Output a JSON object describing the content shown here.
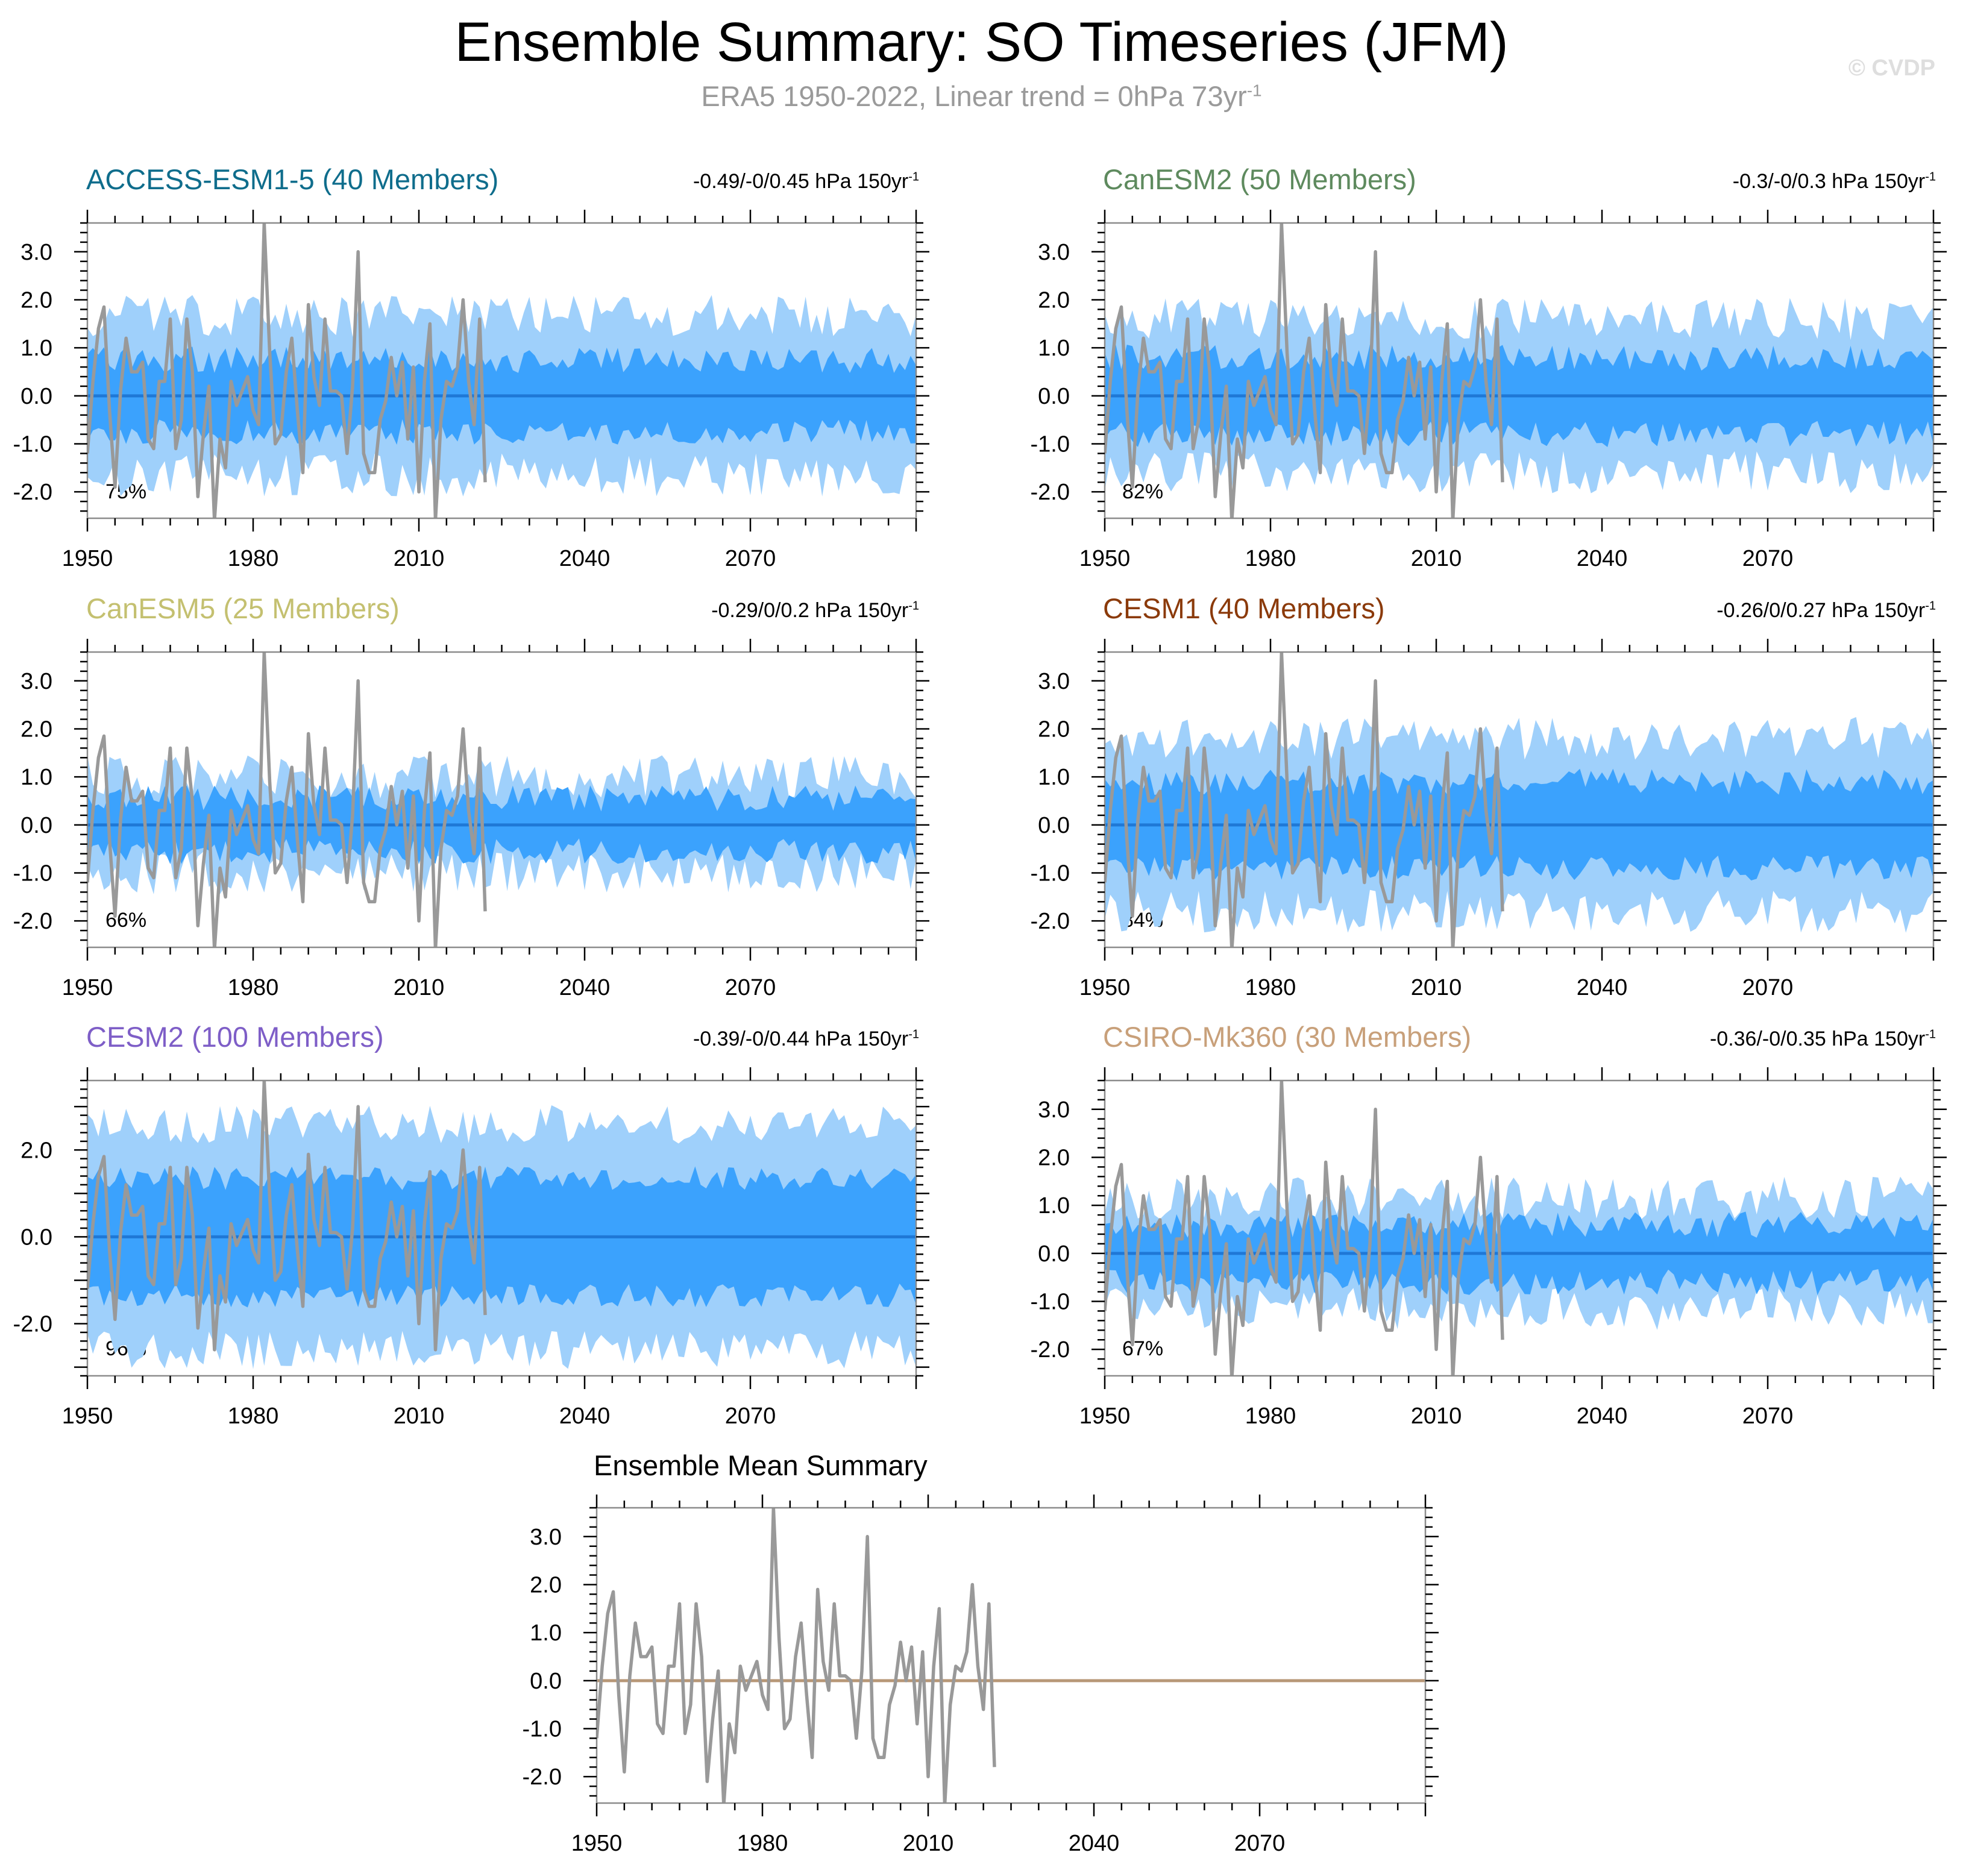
{
  "figure": {
    "title": "Ensemble Summary: SO Timeseries (JFM)",
    "subtitle_main": "ERA5 1950-2022, Linear trend = 0hPa 73yr",
    "subtitle_sup": "-1",
    "watermark": "© CVDP",
    "colors": {
      "band_outer": "#9fd0fb",
      "band_inner": "#3ba2fd",
      "ens_mean_line": "#1f78d6",
      "obs_line": "#999999",
      "summary_mean_line": "#b79777"
    }
  },
  "chart_data": [
    {
      "type": "area",
      "title": "ACCESS-ESM1-5 (40 Members)",
      "title_color": "#0f6d8c",
      "range_text": "-0.49/-0/0.45 hPa 150yr",
      "range_sup": "-1",
      "percent_label": "75%",
      "outer_halfwidth": 1.65,
      "inner_halfwidth": 0.75,
      "x_ticks": [
        "1950",
        "1980",
        "2010",
        "2040",
        "2070"
      ],
      "y_ticks": [
        "3.0",
        "2.0",
        "1.0",
        "0.0",
        "-1.0",
        "-2.0"
      ],
      "xlim": [
        1950,
        2100
      ],
      "ylim": [
        -2.55,
        3.6
      ],
      "xlabel": "",
      "ylabel": ""
    },
    {
      "type": "area",
      "title": "CanESM2 (50 Members)",
      "title_color": "#5e8a5e",
      "range_text": "-0.3/-0/0.3 hPa 150yr",
      "range_sup": "-1",
      "percent_label": "82%",
      "outer_halfwidth": 1.6,
      "inner_halfwidth": 0.8,
      "x_ticks": [
        "1950",
        "1980",
        "2010",
        "2040",
        "2070"
      ],
      "y_ticks": [
        "3.0",
        "2.0",
        "1.0",
        "0.0",
        "-1.0",
        "-2.0"
      ],
      "xlim": [
        1950,
        2100
      ],
      "ylim": [
        -2.55,
        3.6
      ],
      "xlabel": "",
      "ylabel": ""
    },
    {
      "type": "area",
      "title": "CanESM5 (25 Members)",
      "title_color": "#c4c070",
      "range_text": "-0.29/0/0.2 hPa 150yr",
      "range_sup": "-1",
      "percent_label": "66%",
      "outer_halfwidth": 1.0,
      "inner_halfwidth": 0.55,
      "x_ticks": [
        "1950",
        "1980",
        "2010",
        "2040",
        "2070"
      ],
      "y_ticks": [
        "3.0",
        "2.0",
        "1.0",
        "0.0",
        "-1.0",
        "-2.0"
      ],
      "xlim": [
        1950,
        2100
      ],
      "ylim": [
        -2.55,
        3.6
      ],
      "xlabel": "",
      "ylabel": ""
    },
    {
      "type": "area",
      "title": "CESM1 (40 Members)",
      "title_color": "#8b3a0a",
      "range_text": "-0.26/0/0.27 hPa 150yr",
      "range_sup": "-1",
      "percent_label": "84%",
      "outer_halfwidth": 1.8,
      "inner_halfwidth": 0.9,
      "x_ticks": [
        "1950",
        "1980",
        "2010",
        "2040",
        "2070"
      ],
      "y_ticks": [
        "3.0",
        "2.0",
        "1.0",
        "0.0",
        "-1.0",
        "-2.0"
      ],
      "xlim": [
        1950,
        2100
      ],
      "ylim": [
        -2.55,
        3.6
      ],
      "xlabel": "",
      "ylabel": ""
    },
    {
      "type": "area",
      "title": "CESM2 (100 Members)",
      "title_color": "#7e5ec7",
      "range_text": "-0.39/-0/0.44 hPa 150yr",
      "range_sup": "-1",
      "percent_label": "96%",
      "outer_halfwidth": 2.6,
      "inner_halfwidth": 1.35,
      "x_ticks": [
        "1950",
        "1980",
        "2010",
        "2040",
        "2070"
      ],
      "y_ticks": [
        "2.0",
        "0.0",
        "-2.0"
      ],
      "xlim": [
        1950,
        2100
      ],
      "ylim": [
        -3.2,
        3.6
      ],
      "xlabel": "",
      "ylabel": ""
    },
    {
      "type": "area",
      "title": "CSIRO-Mk360 (30 Members)",
      "title_color": "#c8a07a",
      "range_text": "-0.36/-0/0.35 hPa 150yr",
      "range_sup": "-1",
      "percent_label": "67%",
      "outer_halfwidth": 1.15,
      "inner_halfwidth": 0.6,
      "x_ticks": [
        "1950",
        "1980",
        "2010",
        "2040",
        "2070"
      ],
      "y_ticks": [
        "3.0",
        "2.0",
        "1.0",
        "0.0",
        "-1.0",
        "-2.0"
      ],
      "xlim": [
        1950,
        2100
      ],
      "ylim": [
        -2.55,
        3.6
      ],
      "xlabel": "",
      "ylabel": ""
    },
    {
      "type": "line",
      "title": "Ensemble Mean Summary",
      "x_ticks": [
        "1950",
        "1980",
        "2010",
        "2040",
        "2070"
      ],
      "y_ticks": [
        "3.0",
        "2.0",
        "1.0",
        "0.0",
        "-1.0",
        "-2.0"
      ],
      "xlim": [
        1950,
        2100
      ],
      "ylim": [
        -2.55,
        3.6
      ],
      "xlabel": "",
      "ylabel": "",
      "summary_mean_value": 0.0
    }
  ],
  "obs_series": {
    "name": "ERA5",
    "x": [
      1950,
      1951,
      1952,
      1953,
      1954,
      1955,
      1956,
      1957,
      1958,
      1959,
      1960,
      1961,
      1962,
      1963,
      1964,
      1965,
      1966,
      1967,
      1968,
      1969,
      1970,
      1971,
      1972,
      1973,
      1974,
      1975,
      1976,
      1977,
      1978,
      1979,
      1980,
      1981,
      1982,
      1983,
      1984,
      1985,
      1986,
      1987,
      1988,
      1989,
      1990,
      1991,
      1992,
      1993,
      1994,
      1995,
      1996,
      1997,
      1998,
      1999,
      2000,
      2001,
      2002,
      2003,
      2004,
      2005,
      2006,
      2007,
      2008,
      2009,
      2010,
      2011,
      2012,
      2013,
      2014,
      2015,
      2016,
      2017,
      2018,
      2019,
      2020,
      2021,
      2022
    ],
    "y": [
      -1.2,
      0.3,
      1.4,
      1.85,
      -0.3,
      -1.9,
      0.1,
      1.2,
      0.5,
      0.5,
      0.7,
      -0.9,
      -1.1,
      0.3,
      0.3,
      1.6,
      -1.1,
      -0.5,
      1.6,
      0.5,
      -2.1,
      -0.8,
      0.2,
      -2.6,
      -0.9,
      -1.5,
      0.3,
      -0.2,
      0.1,
      0.4,
      -0.3,
      -0.6,
      3.6,
      0.9,
      -1.0,
      -0.8,
      0.5,
      1.2,
      -0.3,
      -1.6,
      1.9,
      0.4,
      -0.2,
      1.6,
      0.1,
      0.1,
      0.0,
      -1.2,
      0.2,
      3.0,
      -1.2,
      -1.6,
      -1.6,
      -0.5,
      -0.1,
      0.8,
      0.0,
      0.7,
      -0.9,
      0.6,
      -2.0,
      0.3,
      1.5,
      -2.6,
      -0.5,
      0.3,
      0.2,
      0.6,
      2.0,
      0.3,
      -0.6,
      1.6,
      -1.8
    ]
  }
}
